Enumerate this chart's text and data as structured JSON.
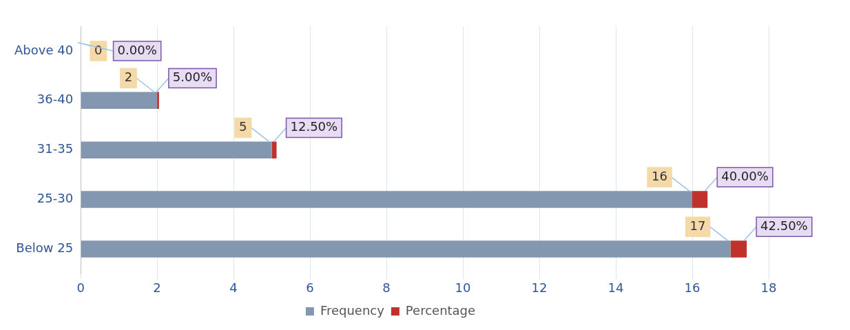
{
  "chart_data": {
    "type": "bar",
    "orientation": "horizontal",
    "stacked": true,
    "categories": [
      "Above 40",
      "36-40",
      "31-35",
      "25-30",
      "Below 25"
    ],
    "series": [
      {
        "name": "Frequency",
        "color": "#8497b0",
        "values": [
          0,
          2,
          5,
          16,
          17
        ],
        "value_labels": [
          "0",
          "2",
          "5",
          "16",
          "17"
        ]
      },
      {
        "name": "Percentage",
        "color": "#c0312b",
        "values": [
          0,
          0.05,
          0.125,
          0.4,
          0.425
        ],
        "value_labels": [
          "0.00%",
          "5.00%",
          "12.50%",
          "40.00%",
          "42.50%"
        ]
      }
    ],
    "xlim": [
      0,
      18
    ],
    "xticks": [
      0,
      2,
      4,
      6,
      8,
      10,
      12,
      14,
      16,
      18
    ],
    "grid": "x",
    "legend": "bottom"
  }
}
